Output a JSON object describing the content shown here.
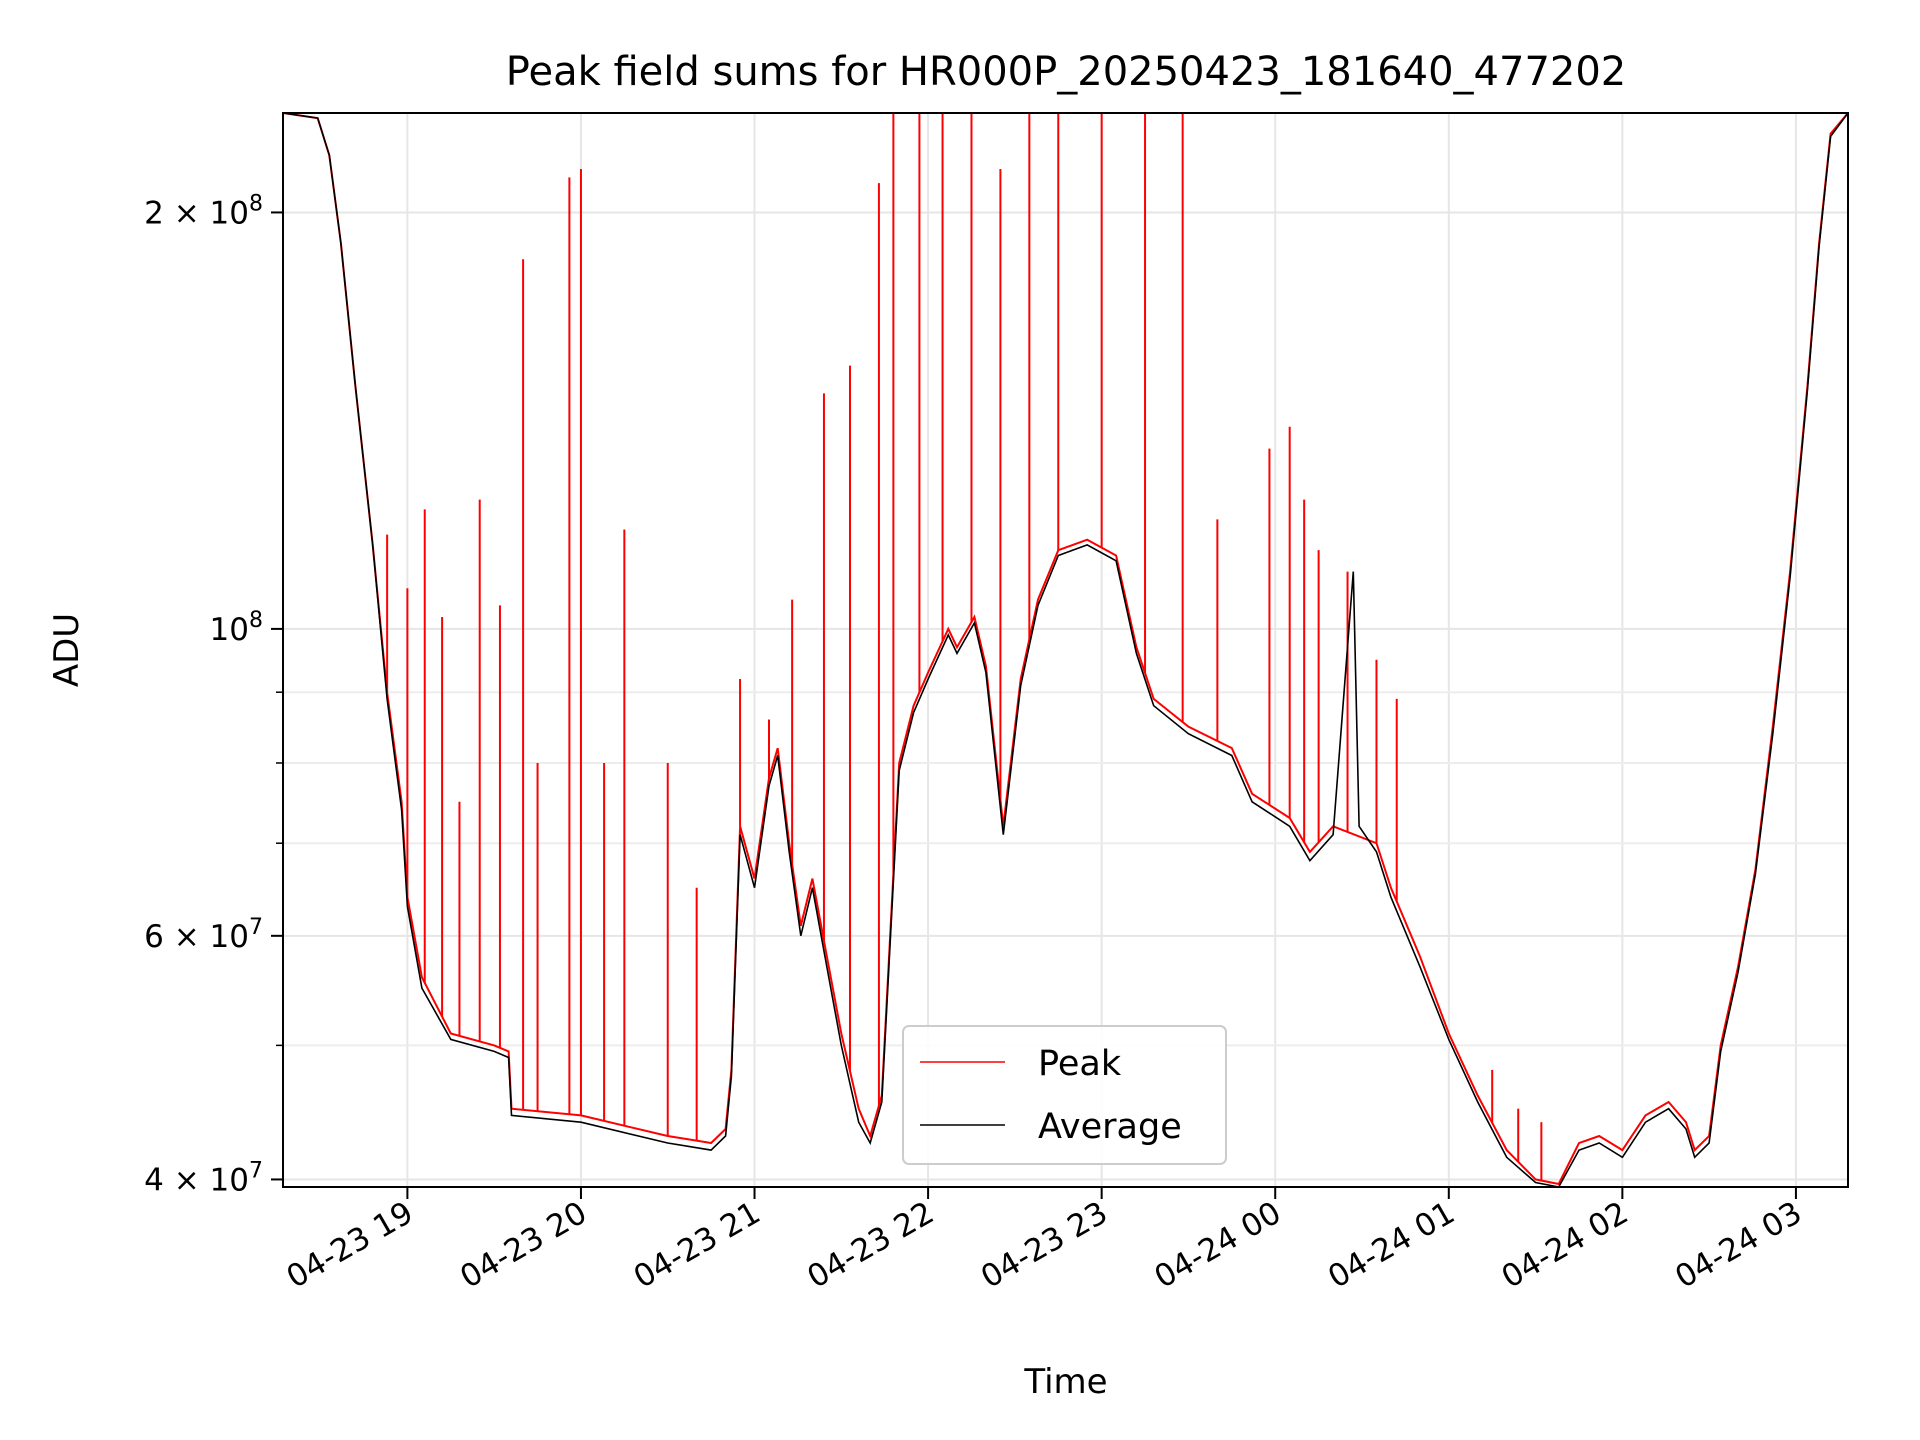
{
  "chart_data": {
    "type": "line",
    "title": "Peak field sums for HR000P_20250423_181640_477202",
    "xlabel": "Time",
    "ylabel": "ADU",
    "y_scale": "log",
    "ylim": [
      39500000,
      236000000
    ],
    "xlim": [
      "2025-04-23 18:17",
      "2025-04-24 03:18"
    ],
    "grid": true,
    "legend_position": "lower-center",
    "x_tick_labels": [
      "04-23 19",
      "04-23 20",
      "04-23 21",
      "04-23 22",
      "04-23 23",
      "04-24 00",
      "04-24 01",
      "04-24 02",
      "04-24 03"
    ],
    "y_tick_labels": [
      {
        "value": 200000000,
        "mantissa": "2",
        "exponent": "8"
      },
      {
        "value": 100000000,
        "mantissa": "",
        "exponent": "8"
      },
      {
        "value": 60000000,
        "mantissa": "6",
        "exponent": "7"
      },
      {
        "value": 40000000,
        "mantissa": "4",
        "exponent": "7"
      }
    ],
    "minor_y_ticks": [
      50000000,
      70000000,
      80000000,
      90000000
    ],
    "series": [
      {
        "name": "Peak",
        "color": "#ff0000",
        "baseline": [
          [
            "2025-04-23 18:17",
            236000000
          ],
          [
            "2025-04-23 18:29",
            234000000
          ],
          [
            "2025-04-23 18:33",
            220000000
          ],
          [
            "2025-04-23 18:37",
            190000000
          ],
          [
            "2025-04-23 18:42",
            150000000
          ],
          [
            "2025-04-23 18:48",
            115000000
          ],
          [
            "2025-04-23 18:53",
            90000000
          ],
          [
            "2025-04-23 18:58",
            75000000
          ],
          [
            "2025-04-23 19:00",
            64000000
          ],
          [
            "2025-04-23 19:05",
            56000000
          ],
          [
            "2025-04-23 19:15",
            51000000
          ],
          [
            "2025-04-23 19:30",
            50000000
          ],
          [
            "2025-04-23 19:35",
            49500000
          ],
          [
            "2025-04-23 19:36",
            45000000
          ],
          [
            "2025-04-23 20:00",
            44500000
          ],
          [
            "2025-04-23 20:30",
            43000000
          ],
          [
            "2025-04-23 20:45",
            42500000
          ],
          [
            "2025-04-23 20:50",
            43500000
          ],
          [
            "2025-04-23 20:52",
            48000000
          ],
          [
            "2025-04-23 20:55",
            72000000
          ],
          [
            "2025-04-23 21:00",
            66000000
          ],
          [
            "2025-04-23 21:05",
            78000000
          ],
          [
            "2025-04-23 21:08",
            82000000
          ],
          [
            "2025-04-23 21:12",
            70000000
          ],
          [
            "2025-04-23 21:16",
            61000000
          ],
          [
            "2025-04-23 21:20",
            66000000
          ],
          [
            "2025-04-23 21:25",
            58000000
          ],
          [
            "2025-04-23 21:30",
            51000000
          ],
          [
            "2025-04-23 21:36",
            45000000
          ],
          [
            "2025-04-23 21:40",
            43000000
          ],
          [
            "2025-04-23 21:44",
            46000000
          ],
          [
            "2025-04-23 21:50",
            80000000
          ],
          [
            "2025-04-23 21:55",
            88000000
          ],
          [
            "2025-04-23 22:00",
            93000000
          ],
          [
            "2025-04-23 22:07",
            100000000
          ],
          [
            "2025-04-23 22:10",
            97000000
          ],
          [
            "2025-04-23 22:16",
            102000000
          ],
          [
            "2025-04-23 22:20",
            94000000
          ],
          [
            "2025-04-23 22:26",
            72000000
          ],
          [
            "2025-04-23 22:32",
            92000000
          ],
          [
            "2025-04-23 22:38",
            105000000
          ],
          [
            "2025-04-23 22:45",
            114000000
          ],
          [
            "2025-04-23 22:55",
            116000000
          ],
          [
            "2025-04-23 23:05",
            113000000
          ],
          [
            "2025-04-23 23:12",
            97000000
          ],
          [
            "2025-04-23 23:18",
            89000000
          ],
          [
            "2025-04-23 23:30",
            85000000
          ],
          [
            "2025-04-23 23:45",
            82000000
          ],
          [
            "2025-04-23 23:52",
            76000000
          ],
          [
            "2025-04-24 00:05",
            73000000
          ],
          [
            "2025-04-24 00:12",
            69000000
          ],
          [
            "2025-04-24 00:20",
            72000000
          ],
          [
            "2025-04-24 00:35",
            70000000
          ],
          [
            "2025-04-24 00:40",
            65000000
          ],
          [
            "2025-04-24 00:50",
            58000000
          ],
          [
            "2025-04-24 01:00",
            51000000
          ],
          [
            "2025-04-24 01:10",
            46000000
          ],
          [
            "2025-04-24 01:20",
            42000000
          ],
          [
            "2025-04-24 01:30",
            40000000
          ],
          [
            "2025-04-24 01:38",
            39700000
          ],
          [
            "2025-04-24 01:45",
            42500000
          ],
          [
            "2025-04-24 01:52",
            43000000
          ],
          [
            "2025-04-24 02:00",
            42000000
          ],
          [
            "2025-04-24 02:08",
            44500000
          ],
          [
            "2025-04-24 02:16",
            45500000
          ],
          [
            "2025-04-24 02:22",
            44000000
          ],
          [
            "2025-04-24 02:25",
            42000000
          ],
          [
            "2025-04-24 02:30",
            43000000
          ],
          [
            "2025-04-24 02:34",
            50000000
          ],
          [
            "2025-04-24 02:40",
            57000000
          ],
          [
            "2025-04-24 02:46",
            67000000
          ],
          [
            "2025-04-24 02:52",
            85000000
          ],
          [
            "2025-04-24 02:58",
            110000000
          ],
          [
            "2025-04-24 03:04",
            150000000
          ],
          [
            "2025-04-24 03:08",
            190000000
          ],
          [
            "2025-04-24 03:12",
            228000000
          ],
          [
            "2025-04-24 03:18",
            236000000
          ]
        ],
        "spikes": [
          [
            "2025-04-23 18:53",
            117000000
          ],
          [
            "2025-04-23 19:00",
            107000000
          ],
          [
            "2025-04-23 19:06",
            122000000
          ],
          [
            "2025-04-23 19:12",
            102000000
          ],
          [
            "2025-04-23 19:18",
            75000000
          ],
          [
            "2025-04-23 19:25",
            124000000
          ],
          [
            "2025-04-23 19:32",
            104000000
          ],
          [
            "2025-04-23 19:40",
            185000000
          ],
          [
            "2025-04-23 19:45",
            80000000
          ],
          [
            "2025-04-23 19:56",
            212000000
          ],
          [
            "2025-04-23 20:00",
            215000000
          ],
          [
            "2025-04-23 20:08",
            80000000
          ],
          [
            "2025-04-23 20:15",
            118000000
          ],
          [
            "2025-04-23 20:30",
            80000000
          ],
          [
            "2025-04-23 20:40",
            65000000
          ],
          [
            "2025-04-23 20:55",
            92000000
          ],
          [
            "2025-04-23 21:05",
            86000000
          ],
          [
            "2025-04-23 21:13",
            105000000
          ],
          [
            "2025-04-23 21:24",
            148000000
          ],
          [
            "2025-04-23 21:33",
            155000000
          ],
          [
            "2025-04-23 21:43",
            210000000
          ],
          [
            "2025-04-23 21:48",
            236000000
          ],
          [
            "2025-04-23 21:57",
            236000000
          ],
          [
            "2025-04-23 22:05",
            236000000
          ],
          [
            "2025-04-23 22:15",
            236000000
          ],
          [
            "2025-04-23 22:25",
            215000000
          ],
          [
            "2025-04-23 22:35",
            236000000
          ],
          [
            "2025-04-23 22:45",
            236000000
          ],
          [
            "2025-04-23 23:00",
            236000000
          ],
          [
            "2025-04-23 23:15",
            236000000
          ],
          [
            "2025-04-23 23:28",
            236000000
          ],
          [
            "2025-04-23 23:40",
            120000000
          ],
          [
            "2025-04-23 23:58",
            135000000
          ],
          [
            "2025-04-24 00:05",
            140000000
          ],
          [
            "2025-04-24 00:10",
            124000000
          ],
          [
            "2025-04-24 00:15",
            114000000
          ],
          [
            "2025-04-24 00:25",
            110000000
          ],
          [
            "2025-04-24 00:35",
            95000000
          ],
          [
            "2025-04-24 00:42",
            89000000
          ],
          [
            "2025-04-24 01:15",
            48000000
          ],
          [
            "2025-04-24 01:24",
            45000000
          ],
          [
            "2025-04-24 01:32",
            44000000
          ]
        ]
      },
      {
        "name": "Average",
        "color": "#000000",
        "baseline": [
          [
            "2025-04-23 18:17",
            236000000
          ],
          [
            "2025-04-23 18:29",
            234000000
          ],
          [
            "2025-04-23 18:33",
            220000000
          ],
          [
            "2025-04-23 18:37",
            190000000
          ],
          [
            "2025-04-23 18:42",
            150000000
          ],
          [
            "2025-04-23 18:48",
            115000000
          ],
          [
            "2025-04-23 18:53",
            89000000
          ],
          [
            "2025-04-23 18:58",
            74000000
          ],
          [
            "2025-04-23 19:00",
            63000000
          ],
          [
            "2025-04-23 19:05",
            55000000
          ],
          [
            "2025-04-23 19:15",
            50500000
          ],
          [
            "2025-04-23 19:30",
            49500000
          ],
          [
            "2025-04-23 19:35",
            49000000
          ],
          [
            "2025-04-23 19:36",
            44500000
          ],
          [
            "2025-04-23 20:00",
            44000000
          ],
          [
            "2025-04-23 20:30",
            42500000
          ],
          [
            "2025-04-23 20:45",
            42000000
          ],
          [
            "2025-04-23 20:50",
            43000000
          ],
          [
            "2025-04-23 20:52",
            47500000
          ],
          [
            "2025-04-23 20:55",
            71000000
          ],
          [
            "2025-04-23 21:00",
            65000000
          ],
          [
            "2025-04-23 21:05",
            77000000
          ],
          [
            "2025-04-23 21:08",
            81000000
          ],
          [
            "2025-04-23 21:12",
            69000000
          ],
          [
            "2025-04-23 21:16",
            60000000
          ],
          [
            "2025-04-23 21:20",
            65000000
          ],
          [
            "2025-04-23 21:25",
            57000000
          ],
          [
            "2025-04-23 21:30",
            50000000
          ],
          [
            "2025-04-23 21:36",
            44000000
          ],
          [
            "2025-04-23 21:40",
            42500000
          ],
          [
            "2025-04-23 21:44",
            45500000
          ],
          [
            "2025-04-23 21:50",
            79000000
          ],
          [
            "2025-04-23 21:55",
            87000000
          ],
          [
            "2025-04-23 22:00",
            92000000
          ],
          [
            "2025-04-23 22:07",
            99000000
          ],
          [
            "2025-04-23 22:10",
            96000000
          ],
          [
            "2025-04-23 22:16",
            101000000
          ],
          [
            "2025-04-23 22:20",
            93000000
          ],
          [
            "2025-04-23 22:26",
            71000000
          ],
          [
            "2025-04-23 22:32",
            91000000
          ],
          [
            "2025-04-23 22:38",
            104000000
          ],
          [
            "2025-04-23 22:45",
            113000000
          ],
          [
            "2025-04-23 22:55",
            115000000
          ],
          [
            "2025-04-23 23:05",
            112000000
          ],
          [
            "2025-04-23 23:12",
            96000000
          ],
          [
            "2025-04-23 23:18",
            88000000
          ],
          [
            "2025-04-23 23:30",
            84000000
          ],
          [
            "2025-04-23 23:45",
            81000000
          ],
          [
            "2025-04-23 23:52",
            75000000
          ],
          [
            "2025-04-24 00:05",
            72000000
          ],
          [
            "2025-04-24 00:12",
            68000000
          ],
          [
            "2025-04-24 00:20",
            71000000
          ],
          [
            "2025-04-24 00:27",
            110000000
          ],
          [
            "2025-04-24 00:29",
            72000000
          ],
          [
            "2025-04-24 00:35",
            69000000
          ],
          [
            "2025-04-24 00:40",
            64000000
          ],
          [
            "2025-04-24 00:50",
            57000000
          ],
          [
            "2025-04-24 01:00",
            50500000
          ],
          [
            "2025-04-24 01:10",
            45500000
          ],
          [
            "2025-04-24 01:20",
            41500000
          ],
          [
            "2025-04-24 01:30",
            39800000
          ],
          [
            "2025-04-24 01:38",
            39500000
          ],
          [
            "2025-04-24 01:45",
            42000000
          ],
          [
            "2025-04-24 01:52",
            42500000
          ],
          [
            "2025-04-24 02:00",
            41500000
          ],
          [
            "2025-04-24 02:08",
            44000000
          ],
          [
            "2025-04-24 02:16",
            45000000
          ],
          [
            "2025-04-24 02:22",
            43500000
          ],
          [
            "2025-04-24 02:25",
            41500000
          ],
          [
            "2025-04-24 02:30",
            42500000
          ],
          [
            "2025-04-24 02:34",
            49500000
          ],
          [
            "2025-04-24 02:40",
            56500000
          ],
          [
            "2025-04-24 02:46",
            66500000
          ],
          [
            "2025-04-24 02:52",
            84000000
          ],
          [
            "2025-04-24 02:58",
            109000000
          ],
          [
            "2025-04-24 03:04",
            149000000
          ],
          [
            "2025-04-24 03:08",
            189000000
          ],
          [
            "2025-04-24 03:12",
            227000000
          ],
          [
            "2025-04-24 03:18",
            236000000
          ]
        ]
      }
    ]
  }
}
